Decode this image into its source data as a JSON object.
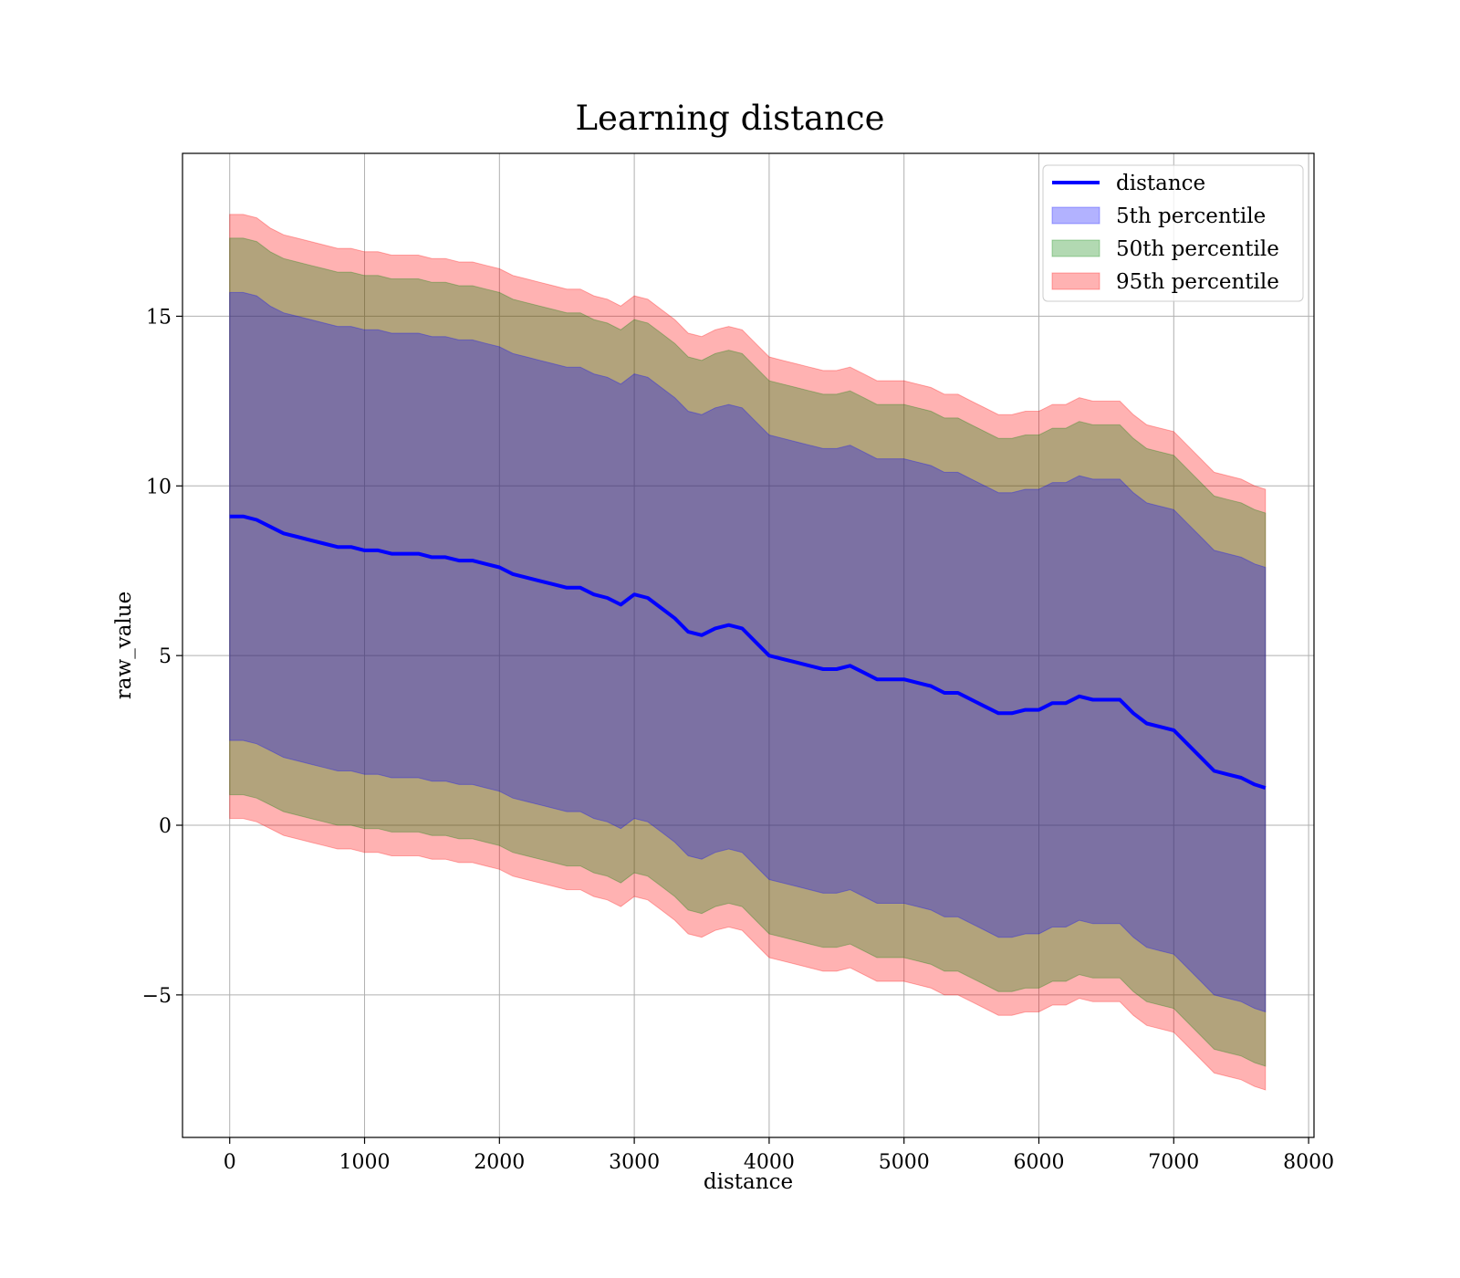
{
  "chart_data": {
    "type": "area",
    "title": "Learning distance",
    "xlabel": "distance",
    "ylabel": "raw_value",
    "xlim": [
      -350,
      8040
    ],
    "ylim": [
      -9.2,
      19.8
    ],
    "xticks": [
      0,
      1000,
      2000,
      3000,
      4000,
      5000,
      6000,
      7000,
      8000
    ],
    "xtick_labels": [
      "0",
      "1000",
      "2000",
      "3000",
      "4000",
      "5000",
      "6000",
      "7000",
      "8000"
    ],
    "yticks": [
      -5,
      0,
      5,
      10,
      15
    ],
    "ytick_labels": [
      "−5",
      "0",
      "5",
      "10",
      "15"
    ],
    "grid": true,
    "legend": {
      "position": "upper right"
    },
    "x": [
      0,
      100,
      200,
      300,
      400,
      500,
      600,
      700,
      800,
      900,
      1000,
      1100,
      1200,
      1300,
      1400,
      1500,
      1600,
      1700,
      1800,
      1900,
      2000,
      2100,
      2200,
      2300,
      2400,
      2500,
      2600,
      2700,
      2800,
      2900,
      3000,
      3100,
      3200,
      3300,
      3400,
      3500,
      3600,
      3700,
      3800,
      3900,
      4000,
      4100,
      4200,
      4300,
      4400,
      4500,
      4600,
      4700,
      4800,
      4900,
      5000,
      5100,
      5200,
      5300,
      5400,
      5500,
      5600,
      5700,
      5800,
      5900,
      6000,
      6100,
      6200,
      6300,
      6400,
      6500,
      6600,
      6700,
      6800,
      6900,
      7000,
      7100,
      7200,
      7300,
      7400,
      7500,
      7600,
      7680
    ],
    "series": [
      {
        "name": "distance",
        "kind": "line",
        "color": "#0000ff",
        "values": [
          9.1,
          9.1,
          9.0,
          8.8,
          8.6,
          8.5,
          8.4,
          8.3,
          8.2,
          8.2,
          8.1,
          8.1,
          8.0,
          8.0,
          8.0,
          7.9,
          7.9,
          7.8,
          7.8,
          7.7,
          7.6,
          7.4,
          7.3,
          7.2,
          7.1,
          7.0,
          7.0,
          6.8,
          6.7,
          6.5,
          6.8,
          6.7,
          6.4,
          6.1,
          5.7,
          5.6,
          5.8,
          5.9,
          5.8,
          5.4,
          5.0,
          4.9,
          4.8,
          4.7,
          4.6,
          4.6,
          4.7,
          4.5,
          4.3,
          4.3,
          4.3,
          4.2,
          4.1,
          3.9,
          3.9,
          3.7,
          3.5,
          3.3,
          3.3,
          3.4,
          3.4,
          3.6,
          3.6,
          3.8,
          3.7,
          3.7,
          3.7,
          3.3,
          3.0,
          2.9,
          2.8,
          2.4,
          2.0,
          1.6,
          1.5,
          1.4,
          1.2,
          1.1
        ]
      },
      {
        "name": "5th percentile",
        "kind": "band",
        "color": "#0000ff",
        "opacity": 0.3,
        "upper": [
          15.7,
          15.7,
          15.6,
          15.3,
          15.1,
          15.0,
          14.9,
          14.8,
          14.7,
          14.7,
          14.6,
          14.6,
          14.5,
          14.5,
          14.5,
          14.4,
          14.4,
          14.3,
          14.3,
          14.2,
          14.1,
          13.9,
          13.8,
          13.7,
          13.6,
          13.5,
          13.5,
          13.3,
          13.2,
          13.0,
          13.3,
          13.2,
          12.9,
          12.6,
          12.2,
          12.1,
          12.3,
          12.4,
          12.3,
          11.9,
          11.5,
          11.4,
          11.3,
          11.2,
          11.1,
          11.1,
          11.2,
          11.0,
          10.8,
          10.8,
          10.8,
          10.7,
          10.6,
          10.4,
          10.4,
          10.2,
          10.0,
          9.8,
          9.8,
          9.9,
          9.9,
          10.1,
          10.1,
          10.3,
          10.2,
          10.2,
          10.2,
          9.8,
          9.5,
          9.4,
          9.3,
          8.9,
          8.5,
          8.1,
          8.0,
          7.9,
          7.7,
          7.6
        ],
        "lower": [
          2.5,
          2.5,
          2.4,
          2.2,
          2.0,
          1.9,
          1.8,
          1.7,
          1.6,
          1.6,
          1.5,
          1.5,
          1.4,
          1.4,
          1.4,
          1.3,
          1.3,
          1.2,
          1.2,
          1.1,
          1.0,
          0.8,
          0.7,
          0.6,
          0.5,
          0.4,
          0.4,
          0.2,
          0.1,
          -0.1,
          0.2,
          0.1,
          -0.2,
          -0.5,
          -0.9,
          -1.0,
          -0.8,
          -0.7,
          -0.8,
          -1.2,
          -1.6,
          -1.7,
          -1.8,
          -1.9,
          -2.0,
          -2.0,
          -1.9,
          -2.1,
          -2.3,
          -2.3,
          -2.3,
          -2.4,
          -2.5,
          -2.7,
          -2.7,
          -2.9,
          -3.1,
          -3.3,
          -3.3,
          -3.2,
          -3.2,
          -3.0,
          -3.0,
          -2.8,
          -2.9,
          -2.9,
          -2.9,
          -3.3,
          -3.6,
          -3.7,
          -3.8,
          -4.2,
          -4.6,
          -5.0,
          -5.1,
          -5.2,
          -5.4,
          -5.5
        ]
      },
      {
        "name": "50th percentile",
        "kind": "band",
        "color": "#008000",
        "opacity": 0.3,
        "upper": [
          17.3,
          17.3,
          17.2,
          16.9,
          16.7,
          16.6,
          16.5,
          16.4,
          16.3,
          16.3,
          16.2,
          16.2,
          16.1,
          16.1,
          16.1,
          16.0,
          16.0,
          15.9,
          15.9,
          15.8,
          15.7,
          15.5,
          15.4,
          15.3,
          15.2,
          15.1,
          15.1,
          14.9,
          14.8,
          14.6,
          14.9,
          14.8,
          14.5,
          14.2,
          13.8,
          13.7,
          13.9,
          14.0,
          13.9,
          13.5,
          13.1,
          13.0,
          12.9,
          12.8,
          12.7,
          12.7,
          12.8,
          12.6,
          12.4,
          12.4,
          12.4,
          12.3,
          12.2,
          12.0,
          12.0,
          11.8,
          11.6,
          11.4,
          11.4,
          11.5,
          11.5,
          11.7,
          11.7,
          11.9,
          11.8,
          11.8,
          11.8,
          11.4,
          11.1,
          11.0,
          10.9,
          10.5,
          10.1,
          9.7,
          9.6,
          9.5,
          9.3,
          9.2
        ],
        "lower": [
          0.9,
          0.9,
          0.8,
          0.6,
          0.4,
          0.3,
          0.2,
          0.1,
          0.0,
          0.0,
          -0.1,
          -0.1,
          -0.2,
          -0.2,
          -0.2,
          -0.3,
          -0.3,
          -0.4,
          -0.4,
          -0.5,
          -0.6,
          -0.8,
          -0.9,
          -1.0,
          -1.1,
          -1.2,
          -1.2,
          -1.4,
          -1.5,
          -1.7,
          -1.4,
          -1.5,
          -1.8,
          -2.1,
          -2.5,
          -2.6,
          -2.4,
          -2.3,
          -2.4,
          -2.8,
          -3.2,
          -3.3,
          -3.4,
          -3.5,
          -3.6,
          -3.6,
          -3.5,
          -3.7,
          -3.9,
          -3.9,
          -3.9,
          -4.0,
          -4.1,
          -4.3,
          -4.3,
          -4.5,
          -4.7,
          -4.9,
          -4.9,
          -4.8,
          -4.8,
          -4.6,
          -4.6,
          -4.4,
          -4.5,
          -4.5,
          -4.5,
          -4.9,
          -5.2,
          -5.3,
          -5.4,
          -5.8,
          -6.2,
          -6.6,
          -6.7,
          -6.8,
          -7.0,
          -7.1
        ]
      },
      {
        "name": "95th percentile",
        "kind": "band",
        "color": "#ff0000",
        "opacity": 0.3,
        "upper": [
          18.0,
          18.0,
          17.9,
          17.6,
          17.4,
          17.3,
          17.2,
          17.1,
          17.0,
          17.0,
          16.9,
          16.9,
          16.8,
          16.8,
          16.8,
          16.7,
          16.7,
          16.6,
          16.6,
          16.5,
          16.4,
          16.2,
          16.1,
          16.0,
          15.9,
          15.8,
          15.8,
          15.6,
          15.5,
          15.3,
          15.6,
          15.5,
          15.2,
          14.9,
          14.5,
          14.4,
          14.6,
          14.7,
          14.6,
          14.2,
          13.8,
          13.7,
          13.6,
          13.5,
          13.4,
          13.4,
          13.5,
          13.3,
          13.1,
          13.1,
          13.1,
          13.0,
          12.9,
          12.7,
          12.7,
          12.5,
          12.3,
          12.1,
          12.1,
          12.2,
          12.2,
          12.4,
          12.4,
          12.6,
          12.5,
          12.5,
          12.5,
          12.1,
          11.8,
          11.7,
          11.6,
          11.2,
          10.8,
          10.4,
          10.3,
          10.2,
          10.0,
          9.9
        ],
        "lower": [
          0.2,
          0.2,
          0.1,
          -0.1,
          -0.3,
          -0.4,
          -0.5,
          -0.6,
          -0.7,
          -0.7,
          -0.8,
          -0.8,
          -0.9,
          -0.9,
          -0.9,
          -1.0,
          -1.0,
          -1.1,
          -1.1,
          -1.2,
          -1.3,
          -1.5,
          -1.6,
          -1.7,
          -1.8,
          -1.9,
          -1.9,
          -2.1,
          -2.2,
          -2.4,
          -2.1,
          -2.2,
          -2.5,
          -2.8,
          -3.2,
          -3.3,
          -3.1,
          -3.0,
          -3.1,
          -3.5,
          -3.9,
          -4.0,
          -4.1,
          -4.2,
          -4.3,
          -4.3,
          -4.2,
          -4.4,
          -4.6,
          -4.6,
          -4.6,
          -4.7,
          -4.8,
          -5.0,
          -5.0,
          -5.2,
          -5.4,
          -5.6,
          -5.6,
          -5.5,
          -5.5,
          -5.3,
          -5.3,
          -5.1,
          -5.2,
          -5.2,
          -5.2,
          -5.6,
          -5.9,
          -6.0,
          -6.1,
          -6.5,
          -6.9,
          -7.3,
          -7.4,
          -7.5,
          -7.7,
          -7.8
        ]
      }
    ]
  }
}
